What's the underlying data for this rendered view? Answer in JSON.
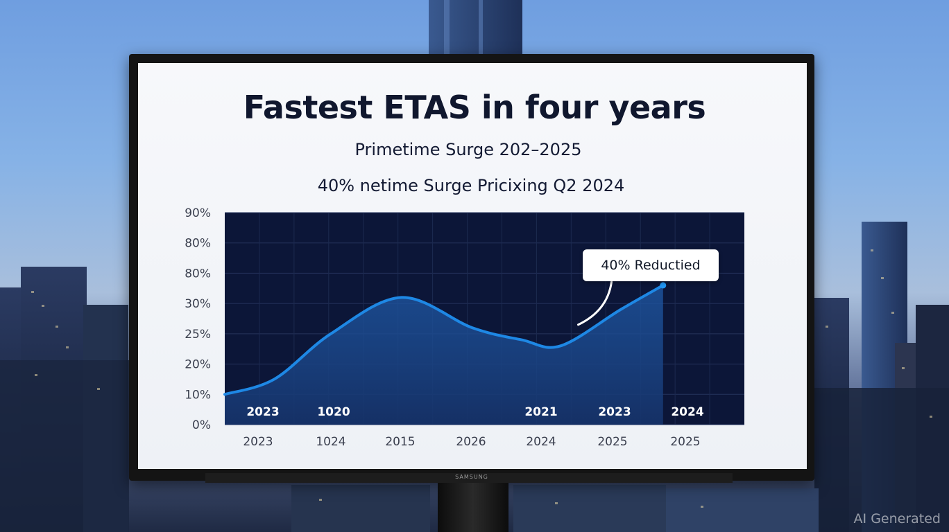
{
  "chart_data": {
    "type": "area",
    "title": "Fastest ETAS in four years",
    "subtitle": "Primetime Surge 202–2025",
    "subtitle2": "40% netime Surge Pricixing Q2 2024",
    "y_tick_labels": [
      "0%",
      "10%",
      "20%",
      "25%",
      "30%",
      "80%",
      "80%",
      "90%"
    ],
    "x_tick_labels": [
      "2023",
      "1024",
      "2015",
      "2026",
      "2024",
      "2025",
      "2025"
    ],
    "inner_x_labels": [
      "2023",
      "1020",
      "",
      "",
      "2021",
      "2023",
      "2024"
    ],
    "series": [
      {
        "values": [
          10,
          15,
          25,
          31,
          26,
          24,
          23,
          29,
          33
        ],
        "color": "#1e88e5"
      }
    ],
    "x": [
      0,
      0.7,
      1.5,
      2.5,
      3.5,
      4.2,
      4.75,
      5.6,
      6.2
    ],
    "annotation": {
      "text": "40% Reductied",
      "x": 5.0
    },
    "ylim": [
      0,
      7
    ],
    "grid": true,
    "colors": {
      "plot_bg": "#0c1638",
      "line": "#1e88e5",
      "fill": "#1a4a8a"
    }
  },
  "watermark": "AI Generated",
  "brand_text": "SAMSUNG"
}
